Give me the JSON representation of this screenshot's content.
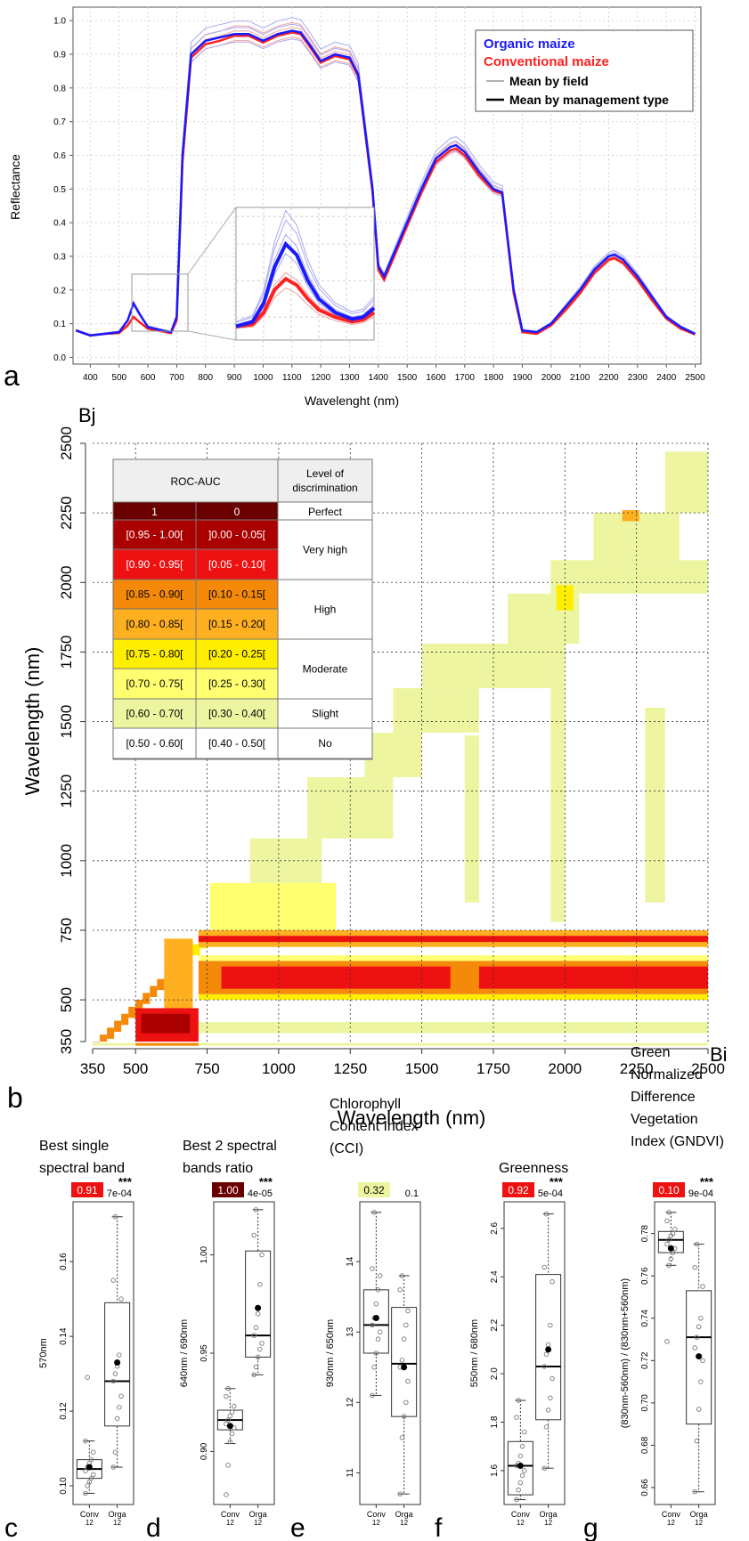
{
  "panel_letters": [
    "a",
    "b",
    "c",
    "d",
    "e",
    "f",
    "g"
  ],
  "colors": {
    "organic": "#1a1aff",
    "conventional": "#ff2020",
    "frame": "#555555",
    "grid": "#cccccc"
  },
  "chart_data": [
    {
      "type": "line",
      "panel": "a",
      "xlabel": "Wavelenght (nm)",
      "ylabel": "Reflectance",
      "xlim": [
        340,
        2520
      ],
      "ylim": [
        -0.02,
        1.04
      ],
      "xticks": [
        400,
        500,
        600,
        700,
        800,
        900,
        1000,
        1100,
        1200,
        1300,
        1400,
        1500,
        1600,
        1700,
        1800,
        1900,
        2000,
        2100,
        2200,
        2300,
        2400,
        2500
      ],
      "yticks": [
        0.0,
        0.1,
        0.2,
        0.3,
        0.4,
        0.5,
        0.6,
        0.7,
        0.8,
        0.9,
        1.0
      ],
      "yticklabels": [
        "0.0",
        "0.1",
        "0.2",
        "0.3",
        "0.4",
        "0.5",
        "0.6",
        "0.7",
        "0.8",
        "0.9",
        "1.0"
      ],
      "grid": true,
      "legend_position": "top-right",
      "legend": [
        "Organic maize",
        "Conventional maize",
        "Mean by field",
        "Mean by management type"
      ],
      "inset": "zoom on 480-700 nm",
      "series": [
        {
          "name": "Organic maize",
          "x": [
            350,
            400,
            450,
            500,
            530,
            550,
            570,
            600,
            650,
            680,
            700,
            720,
            750,
            800,
            850,
            900,
            950,
            1000,
            1050,
            1100,
            1130,
            1160,
            1200,
            1250,
            1300,
            1330,
            1380,
            1400,
            1420,
            1450,
            1500,
            1550,
            1600,
            1650,
            1670,
            1700,
            1750,
            1800,
            1830,
            1870,
            1900,
            1950,
            2000,
            2050,
            2100,
            2150,
            2200,
            2220,
            2250,
            2300,
            2350,
            2400,
            2450,
            2500
          ],
          "y": [
            0.08,
            0.065,
            0.07,
            0.075,
            0.11,
            0.16,
            0.13,
            0.09,
            0.08,
            0.075,
            0.12,
            0.6,
            0.9,
            0.94,
            0.95,
            0.96,
            0.96,
            0.94,
            0.96,
            0.97,
            0.965,
            0.93,
            0.88,
            0.9,
            0.89,
            0.84,
            0.5,
            0.27,
            0.24,
            0.3,
            0.4,
            0.5,
            0.59,
            0.625,
            0.63,
            0.61,
            0.55,
            0.5,
            0.49,
            0.2,
            0.08,
            0.075,
            0.1,
            0.15,
            0.2,
            0.26,
            0.3,
            0.305,
            0.29,
            0.24,
            0.18,
            0.12,
            0.09,
            0.07
          ]
        },
        {
          "name": "Conventional maize",
          "x": [
            350,
            400,
            450,
            500,
            530,
            550,
            570,
            600,
            650,
            680,
            700,
            720,
            750,
            800,
            850,
            900,
            950,
            1000,
            1050,
            1100,
            1130,
            1160,
            1200,
            1250,
            1300,
            1330,
            1380,
            1400,
            1420,
            1450,
            1500,
            1550,
            1600,
            1650,
            1670,
            1700,
            1750,
            1800,
            1830,
            1870,
            1900,
            1950,
            2000,
            2050,
            2100,
            2150,
            2200,
            2220,
            2250,
            2300,
            2350,
            2400,
            2450,
            2500
          ],
          "y": [
            0.08,
            0.065,
            0.07,
            0.072,
            0.095,
            0.12,
            0.105,
            0.085,
            0.077,
            0.072,
            0.11,
            0.58,
            0.89,
            0.93,
            0.94,
            0.955,
            0.955,
            0.935,
            0.955,
            0.965,
            0.96,
            0.925,
            0.875,
            0.895,
            0.885,
            0.835,
            0.49,
            0.26,
            0.23,
            0.29,
            0.39,
            0.49,
            0.58,
            0.615,
            0.62,
            0.6,
            0.54,
            0.495,
            0.485,
            0.19,
            0.075,
            0.07,
            0.095,
            0.14,
            0.19,
            0.25,
            0.29,
            0.295,
            0.28,
            0.23,
            0.17,
            0.115,
            0.085,
            0.068
          ]
        }
      ]
    },
    {
      "type": "heatmap",
      "panel": "b",
      "xlabel": "Wavelength (nm)",
      "ylabel": "Wavelength (nm)",
      "x_axis_name": "Bi",
      "y_axis_name": "Bj",
      "xticks": [
        350,
        500,
        750,
        1000,
        1250,
        1500,
        1750,
        2000,
        2250,
        2500
      ],
      "yticks": [
        350,
        500,
        750,
        1000,
        1250,
        1500,
        1750,
        2000,
        2250,
        2500
      ],
      "xlim": [
        350,
        2500
      ],
      "ylim": [
        350,
        2500
      ],
      "grid": true,
      "table": {
        "header": [
          "ROC-AUC",
          "Level of discrimination"
        ],
        "subheader": [
          "1",
          "0",
          "Perfect"
        ],
        "rows": [
          [
            "[0.95 - 1.00[",
            "]0.00 - 0.05["
          ],
          [
            "[0.90 - 0.95[",
            "[0.05 - 0.10["
          ],
          [
            "[0.85 - 0.90[",
            "[0.10 - 0.15["
          ],
          [
            "[0.80 - 0.85[",
            "[0.15 - 0.20["
          ],
          [
            "[0.75 - 0.80[",
            "[0.20 - 0.25["
          ],
          [
            "[0.70 - 0.75[",
            "[0.25 - 0.30["
          ],
          [
            "[0.60 - 0.70[",
            "[0.30 - 0.40["
          ],
          [
            "[0.50 - 0.60[",
            "[0.40 - 0.50["
          ]
        ],
        "row_colors": [
          "#ab0000",
          "#ee1111",
          "#f58a0a",
          "#ffb020",
          "#ffee00",
          "#ffff70",
          "#eef5a0",
          "#ffffff"
        ],
        "levels": [
          "Very high",
          "High",
          "Moderate",
          "Slight",
          "No"
        ]
      }
    },
    {
      "type": "box",
      "panel": "c",
      "title": "Best single spectral band",
      "ylabel": "570nm",
      "categories": [
        "Conv",
        "Orga"
      ],
      "n": [
        "12",
        "12"
      ],
      "auc_label": "0.91",
      "auc_color": "#ee1111",
      "sig": "***",
      "pvalue": "7e-04",
      "ylim": [
        0.095,
        0.176
      ],
      "yticks": [
        0.1,
        0.12,
        0.14,
        0.16
      ],
      "yticklabels": [
        "0.10",
        "0.12",
        "0.14",
        "0.16"
      ],
      "boxes": [
        {
          "q1": 0.102,
          "median": 0.1045,
          "q3": 0.107,
          "wlow": 0.098,
          "whigh": 0.112,
          "mean": 0.105,
          "points": [
            0.098,
            0.1,
            0.101,
            0.102,
            0.103,
            0.104,
            0.105,
            0.106,
            0.107,
            0.109,
            0.112,
            0.129
          ]
        },
        {
          "q1": 0.116,
          "median": 0.128,
          "q3": 0.149,
          "wlow": 0.105,
          "whigh": 0.172,
          "mean": 0.133,
          "points": [
            0.105,
            0.109,
            0.118,
            0.121,
            0.124,
            0.128,
            0.13,
            0.132,
            0.135,
            0.15,
            0.155,
            0.172
          ]
        }
      ]
    },
    {
      "type": "box",
      "panel": "d",
      "title": "Best 2 spectral bands ratio",
      "ylabel": "640nm / 690nm",
      "categories": [
        "Conv",
        "Orga"
      ],
      "n": [
        "12",
        "12"
      ],
      "auc_label": "1.00",
      "auc_color": "#6b0000",
      "sig": "***",
      "pvalue": "4e-05",
      "ylim": [
        0.873,
        1.027
      ],
      "yticks": [
        0.9,
        0.95,
        1.0
      ],
      "yticklabels": [
        "0.90",
        "0.95",
        "1.00"
      ],
      "boxes": [
        {
          "q1": 0.911,
          "median": 0.916,
          "q3": 0.921,
          "wlow": 0.904,
          "whigh": 0.932,
          "mean": 0.913,
          "points": [
            0.878,
            0.893,
            0.905,
            0.909,
            0.912,
            0.914,
            0.916,
            0.918,
            0.92,
            0.923,
            0.928,
            0.932
          ]
        },
        {
          "q1": 0.948,
          "median": 0.959,
          "q3": 1.002,
          "wlow": 0.939,
          "whigh": 1.023,
          "mean": 0.973,
          "points": [
            0.939,
            0.943,
            0.948,
            0.952,
            0.955,
            0.959,
            0.963,
            0.97,
            0.985,
            1.0,
            1.01,
            1.023
          ]
        }
      ]
    },
    {
      "type": "box",
      "panel": "e",
      "title": "Chlorophyll Content Index (CCI)",
      "ylabel": "930nm / 650nm",
      "categories": [
        "Conv",
        "Orga"
      ],
      "n": [
        "12",
        "12"
      ],
      "auc_label": "0.32",
      "auc_color": "#eef5a0",
      "sig": "",
      "pvalue": "0.1",
      "ylim": [
        10.55,
        14.85
      ],
      "yticks": [
        11,
        12,
        13,
        14
      ],
      "yticklabels": [
        "11",
        "12",
        "13",
        "14"
      ],
      "boxes": [
        {
          "q1": 12.7,
          "median": 13.1,
          "q3": 13.6,
          "wlow": 12.1,
          "whigh": 14.7,
          "mean": 13.2,
          "points": [
            12.1,
            12.5,
            12.7,
            12.9,
            13.0,
            13.1,
            13.2,
            13.4,
            13.6,
            13.8,
            13.9,
            14.7
          ]
        },
        {
          "q1": 11.8,
          "median": 12.55,
          "q3": 13.35,
          "wlow": 10.7,
          "whigh": 13.8,
          "mean": 12.5,
          "points": [
            10.7,
            11.5,
            11.8,
            12.0,
            12.3,
            12.5,
            12.6,
            12.9,
            13.1,
            13.3,
            13.6,
            13.8
          ]
        }
      ]
    },
    {
      "type": "box",
      "panel": "f",
      "title": "Greenness",
      "ylabel": "550nm / 680nm",
      "categories": [
        "Conv",
        "Orga"
      ],
      "n": [
        "12",
        "12"
      ],
      "auc_label": "0.92",
      "auc_color": "#ee1111",
      "sig": "***",
      "pvalue": "5e-04",
      "ylim": [
        1.46,
        2.71
      ],
      "yticks": [
        1.6,
        1.8,
        2.0,
        2.2,
        2.4,
        2.6
      ],
      "yticklabels": [
        "1.6",
        "1.8",
        "2.0",
        "2.2",
        "2.4",
        "2.6"
      ],
      "boxes": [
        {
          "q1": 1.5,
          "median": 1.62,
          "q3": 1.72,
          "wlow": 1.48,
          "whigh": 1.89,
          "mean": 1.62,
          "points": [
            1.48,
            1.52,
            1.55,
            1.58,
            1.6,
            1.62,
            1.63,
            1.66,
            1.7,
            1.76,
            1.82,
            1.89
          ]
        },
        {
          "q1": 1.81,
          "median": 2.03,
          "q3": 2.41,
          "wlow": 1.61,
          "whigh": 2.66,
          "mean": 2.1,
          "points": [
            1.61,
            1.78,
            1.85,
            1.9,
            1.98,
            2.03,
            2.08,
            2.12,
            2.2,
            2.38,
            2.44,
            2.66
          ]
        }
      ]
    },
    {
      "type": "box",
      "panel": "g",
      "title": "Green Normalized Difference Vegetation Index (GNDVI)",
      "ylabel": "(830nm-560nm) / (830nm+560nm)",
      "categories": [
        "Conv",
        "Orga"
      ],
      "n": [
        "12",
        "12"
      ],
      "auc_label": "0.10",
      "auc_color": "#ee1111",
      "sig": "***",
      "pvalue": "9e-04",
      "ylim": [
        0.652,
        0.795
      ],
      "yticks": [
        0.66,
        0.68,
        0.7,
        0.72,
        0.74,
        0.76,
        0.78
      ],
      "yticklabels": [
        "0.66",
        "0.68",
        "0.70",
        "0.72",
        "0.74",
        "0.76",
        "0.78"
      ],
      "boxes": [
        {
          "q1": 0.771,
          "median": 0.777,
          "q3": 0.781,
          "wlow": 0.765,
          "whigh": 0.79,
          "mean": 0.773,
          "points": [
            0.729,
            0.765,
            0.768,
            0.771,
            0.773,
            0.775,
            0.777,
            0.779,
            0.78,
            0.782,
            0.786,
            0.79
          ]
        },
        {
          "q1": 0.69,
          "median": 0.731,
          "q3": 0.753,
          "wlow": 0.658,
          "whigh": 0.775,
          "mean": 0.722,
          "points": [
            0.658,
            0.682,
            0.697,
            0.71,
            0.72,
            0.726,
            0.731,
            0.736,
            0.74,
            0.755,
            0.764,
            0.775
          ]
        }
      ]
    }
  ]
}
